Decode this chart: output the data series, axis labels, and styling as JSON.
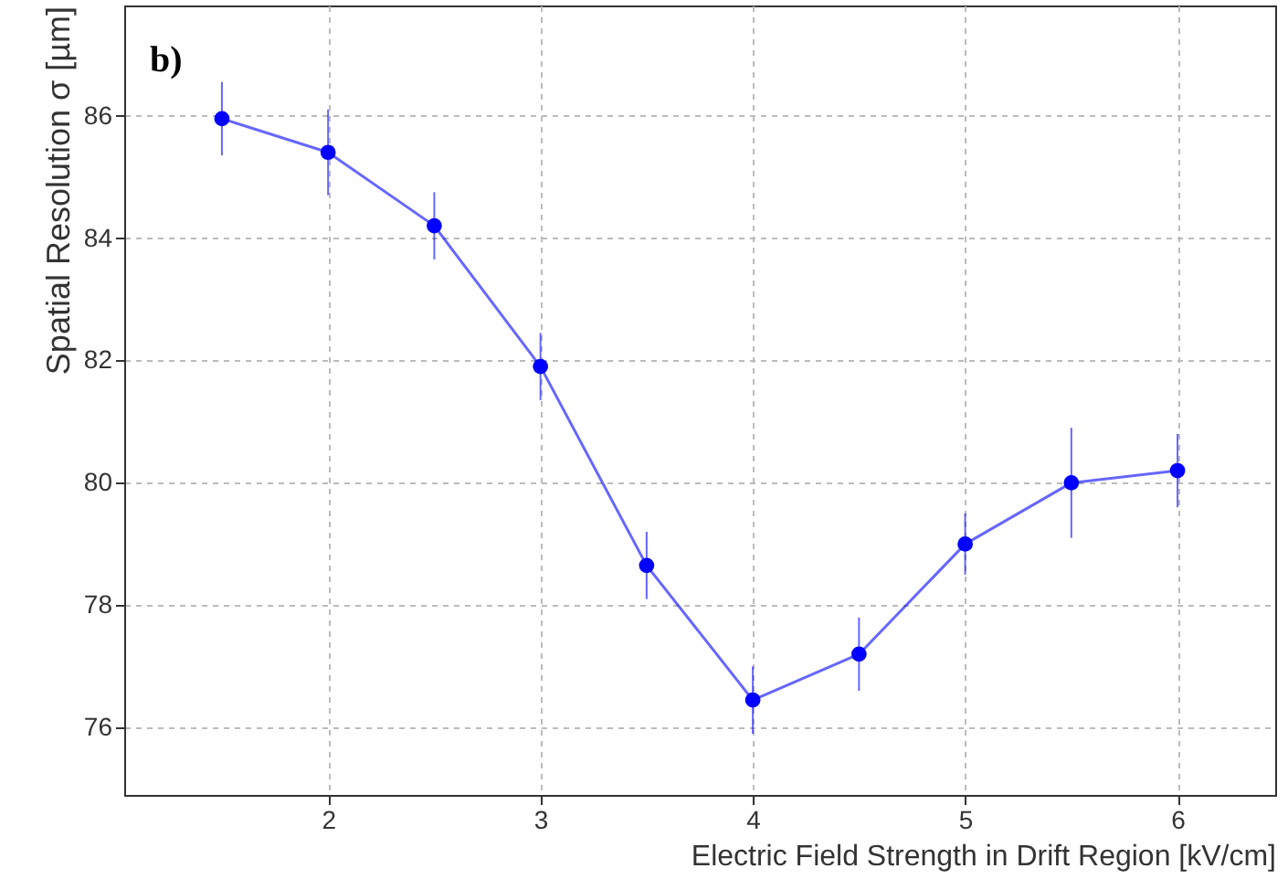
{
  "chart_data": {
    "type": "line",
    "xlabel": "Electric Field Strength in Drift Region [kV/cm]",
    "ylabel": "Spatial Resolution σ [µm]",
    "annotations": [
      "b)"
    ],
    "x": [
      1.5,
      2,
      2.5,
      3,
      3.5,
      4,
      4.5,
      5,
      5.5,
      6
    ],
    "series": [
      {
        "color": "#0000ff",
        "values": [
          85.95,
          85.4,
          84.2,
          81.9,
          78.65,
          76.45,
          77.2,
          79.0,
          80.0,
          80.2
        ],
        "errors": [
          0.6,
          0.7,
          0.55,
          0.55,
          0.55,
          0.55,
          0.6,
          0.5,
          0.9,
          0.6
        ]
      }
    ],
    "xlim": [
      1.04,
      6.46
    ],
    "ylim": [
      74.9,
      87.8
    ],
    "xticks": [
      2,
      3,
      4,
      5,
      6
    ],
    "yticks": [
      76,
      78,
      80,
      82,
      84,
      86
    ],
    "grid": true,
    "marker": "circle",
    "line_style": "solid"
  }
}
